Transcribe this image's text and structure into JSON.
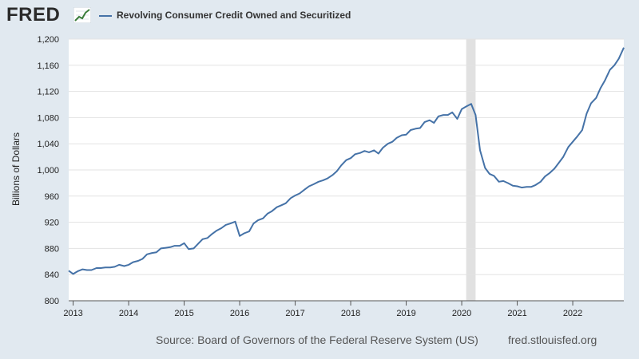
{
  "header": {
    "logo_text": "FRED",
    "logo_icon": "line-graph-icon",
    "legend_label": "Revolving Consumer Credit Owned and Securitized",
    "series_color": "#4572a7"
  },
  "footer": {
    "source": "Source: Board of Governors of the Federal Reserve System (US)",
    "url": "fred.stlouisfed.org"
  },
  "chart_data": {
    "type": "line",
    "ylabel": "Billions of Dollars",
    "ylim": [
      800,
      1200
    ],
    "yticks": [
      "800",
      "840",
      "880",
      "920",
      "960",
      "1,000",
      "1,040",
      "1,080",
      "1,120",
      "1,160",
      "1,200"
    ],
    "xticks": [
      {
        "label": "2013",
        "x": 2013.0
      },
      {
        "label": "2014",
        "x": 2014.0
      },
      {
        "label": "2015",
        "x": 2015.0
      },
      {
        "label": "2016",
        "x": 2016.0
      },
      {
        "label": "2017",
        "x": 2017.0
      },
      {
        "label": "2018",
        "x": 2018.0
      },
      {
        "label": "2019",
        "x": 2019.0
      },
      {
        "label": "2020",
        "x": 2020.0
      },
      {
        "label": "2021",
        "x": 2021.0
      },
      {
        "label": "2022",
        "x": 2022.0
      }
    ],
    "xlim": [
      2012.92,
      2022.92
    ],
    "grid": true,
    "recession": [
      2020.08,
      2020.25
    ],
    "series": [
      {
        "name": "Revolving Consumer Credit Owned and Securitized",
        "color": "#4572a7",
        "x": [
          2012.92,
          2013.0,
          2013.08,
          2013.17,
          2013.25,
          2013.33,
          2013.42,
          2013.5,
          2013.58,
          2013.67,
          2013.75,
          2013.83,
          2013.92,
          2014.0,
          2014.08,
          2014.17,
          2014.25,
          2014.33,
          2014.42,
          2014.5,
          2014.58,
          2014.67,
          2014.75,
          2014.83,
          2014.92,
          2015.0,
          2015.08,
          2015.17,
          2015.25,
          2015.33,
          2015.42,
          2015.5,
          2015.58,
          2015.67,
          2015.75,
          2015.83,
          2015.92,
          2016.0,
          2016.08,
          2016.17,
          2016.25,
          2016.33,
          2016.42,
          2016.5,
          2016.58,
          2016.67,
          2016.75,
          2016.83,
          2016.92,
          2017.0,
          2017.08,
          2017.17,
          2017.25,
          2017.33,
          2017.42,
          2017.5,
          2017.58,
          2017.67,
          2017.75,
          2017.83,
          2017.92,
          2018.0,
          2018.08,
          2018.17,
          2018.25,
          2018.33,
          2018.42,
          2018.5,
          2018.58,
          2018.67,
          2018.75,
          2018.83,
          2018.92,
          2019.0,
          2019.08,
          2019.17,
          2019.25,
          2019.33,
          2019.42,
          2019.5,
          2019.58,
          2019.67,
          2019.75,
          2019.83,
          2019.92,
          2020.0,
          2020.08,
          2020.17,
          2020.25,
          2020.33,
          2020.42,
          2020.5,
          2020.58,
          2020.67,
          2020.75,
          2020.83,
          2020.92,
          2021.0,
          2021.08,
          2021.17,
          2021.25,
          2021.33,
          2021.42,
          2021.5,
          2021.58,
          2021.67,
          2021.75,
          2021.83,
          2021.92,
          2022.0,
          2022.08,
          2022.17,
          2022.25,
          2022.33,
          2022.42,
          2022.5,
          2022.58,
          2022.67,
          2022.75,
          2022.83,
          2022.92
        ],
        "values": [
          846,
          841,
          845,
          848,
          847,
          847,
          850,
          850,
          851,
          851,
          852,
          855,
          853,
          855,
          859,
          861,
          864,
          871,
          873,
          874,
          880,
          881,
          882,
          884,
          884,
          888,
          879,
          880,
          887,
          894,
          896,
          902,
          907,
          911,
          916,
          918,
          921,
          899,
          903,
          906,
          918,
          923,
          926,
          933,
          937,
          943,
          946,
          949,
          957,
          961,
          964,
          970,
          975,
          978,
          982,
          984,
          987,
          992,
          998,
          1007,
          1015,
          1018,
          1024,
          1026,
          1029,
          1027,
          1030,
          1025,
          1034,
          1040,
          1043,
          1049,
          1053,
          1054,
          1061,
          1063,
          1064,
          1073,
          1076,
          1072,
          1082,
          1084,
          1084,
          1088,
          1078,
          1093,
          1097,
          1101,
          1084,
          1030,
          1003,
          994,
          991,
          982,
          983,
          980,
          976,
          975,
          973,
          974,
          974,
          977,
          982,
          990,
          995,
          1002,
          1011,
          1020,
          1035,
          1043,
          1051,
          1061,
          1086,
          1102,
          1110,
          1125,
          1137,
          1153,
          1160,
          1170,
          1187
        ]
      }
    ]
  }
}
